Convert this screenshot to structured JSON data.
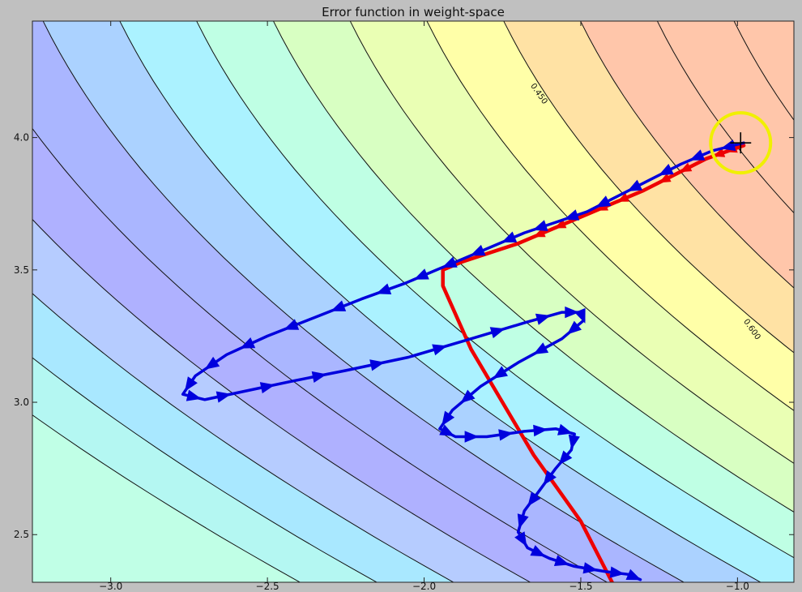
{
  "chart_data": {
    "type": "contour",
    "title": "Error function in weight-space",
    "xlabel": "",
    "ylabel": "",
    "xlim": [
      -3.25,
      -0.82
    ],
    "ylim": [
      2.32,
      4.44
    ],
    "x_ticks": [
      -3.0,
      -2.5,
      -2.0,
      -1.5,
      -1.0
    ],
    "x_tick_labels": [
      "−3.0",
      "−2.5",
      "−2.0",
      "−1.5",
      "−1.0"
    ],
    "y_ticks": [
      2.5,
      3.0,
      3.5,
      4.0
    ],
    "y_tick_labels": [
      "2.5",
      "3.0",
      "3.5",
      "4.0"
    ],
    "grid": false,
    "contour_labels": [
      {
        "text": "0.450",
        "level": 0.45
      },
      {
        "text": "0.600",
        "level": 0.6
      }
    ],
    "color_bands": [
      {
        "color": "#c0ffe6"
      },
      {
        "color": "#b4f7f2"
      },
      {
        "color": "#a9e8ff"
      },
      {
        "color": "#b6ccff"
      },
      {
        "color": "#afb1ff"
      },
      {
        "color": "#aab6ff"
      },
      {
        "color": "#abd2ff"
      },
      {
        "color": "#abf2ff"
      },
      {
        "color": "#bfffe4"
      },
      {
        "color": "#d8ffc2"
      },
      {
        "color": "#eaffb4"
      },
      {
        "color": "#ffffa8"
      },
      {
        "color": "#ffe2a4"
      },
      {
        "color": "#ffc6aa"
      }
    ],
    "series": [
      {
        "kind": "batch-path",
        "color": "#ee0000",
        "points": [
          [
            -0.98,
            3.97
          ],
          [
            -1.1,
            3.92
          ],
          [
            -1.3,
            3.8
          ],
          [
            -1.5,
            3.7
          ],
          [
            -1.7,
            3.6
          ],
          [
            -1.88,
            3.53
          ],
          [
            -1.94,
            3.5
          ],
          [
            -1.94,
            3.44
          ],
          [
            -1.85,
            3.2
          ],
          [
            -1.75,
            3.0
          ],
          [
            -1.65,
            2.8
          ],
          [
            -1.5,
            2.55
          ],
          [
            -1.4,
            2.32
          ]
        ]
      },
      {
        "kind": "momentum-path",
        "color": "#0000dd",
        "points": [
          [
            -0.98,
            3.98
          ],
          [
            -1.08,
            3.95
          ],
          [
            -1.18,
            3.9
          ],
          [
            -1.28,
            3.84
          ],
          [
            -1.38,
            3.78
          ],
          [
            -1.48,
            3.72
          ],
          [
            -1.58,
            3.68
          ],
          [
            -1.68,
            3.64
          ],
          [
            -1.78,
            3.59
          ],
          [
            -1.88,
            3.54
          ],
          [
            -1.96,
            3.5
          ],
          [
            -2.06,
            3.45
          ],
          [
            -2.2,
            3.39
          ],
          [
            -2.35,
            3.32
          ],
          [
            -2.5,
            3.25
          ],
          [
            -2.63,
            3.18
          ],
          [
            -2.73,
            3.1
          ],
          [
            -2.77,
            3.03
          ],
          [
            -2.7,
            3.01
          ],
          [
            -2.58,
            3.04
          ],
          [
            -2.42,
            3.08
          ],
          [
            -2.25,
            3.12
          ],
          [
            -2.05,
            3.17
          ],
          [
            -1.85,
            3.24
          ],
          [
            -1.68,
            3.3
          ],
          [
            -1.56,
            3.34
          ],
          [
            -1.5,
            3.34
          ],
          [
            -1.49,
            3.31
          ],
          [
            -1.56,
            3.24
          ],
          [
            -1.7,
            3.15
          ],
          [
            -1.82,
            3.06
          ],
          [
            -1.91,
            2.97
          ],
          [
            -1.95,
            2.9
          ],
          [
            -1.9,
            2.87
          ],
          [
            -1.8,
            2.87
          ],
          [
            -1.68,
            2.89
          ],
          [
            -1.58,
            2.9
          ],
          [
            -1.52,
            2.88
          ],
          [
            -1.53,
            2.82
          ],
          [
            -1.58,
            2.75
          ],
          [
            -1.63,
            2.67
          ],
          [
            -1.68,
            2.59
          ],
          [
            -1.7,
            2.51
          ],
          [
            -1.67,
            2.45
          ],
          [
            -1.6,
            2.41
          ],
          [
            -1.52,
            2.38
          ],
          [
            -1.42,
            2.36
          ],
          [
            -1.35,
            2.35
          ],
          [
            -1.31,
            2.33
          ]
        ]
      }
    ],
    "marker": {
      "x": -0.99,
      "y": 3.98,
      "symbol": "+",
      "circle_color": "#f0f000"
    }
  }
}
